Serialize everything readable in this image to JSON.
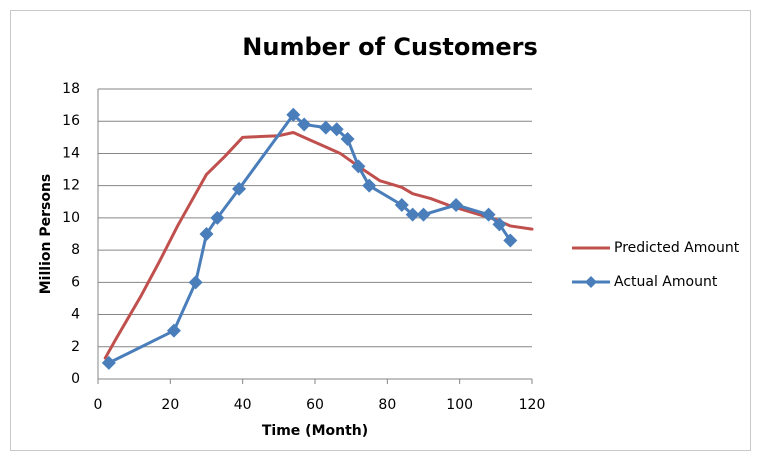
{
  "chart_data": {
    "type": "line",
    "title": "Number of Customers",
    "x_label": "Time (Month)",
    "y_label": "Million Persons",
    "xlim": [
      0,
      120
    ],
    "xticks": [
      0,
      20,
      40,
      60,
      80,
      100,
      120
    ],
    "ylim": [
      0,
      18
    ],
    "yticks": [
      0,
      2,
      4,
      6,
      8,
      10,
      12,
      14,
      16,
      18
    ],
    "grid": true,
    "legend": "right",
    "series": [
      {
        "name": "Predicted Amount",
        "color": "#c0504d",
        "marker": "none",
        "x": [
          2,
          5,
          12,
          17,
          22,
          30,
          35,
          40,
          45,
          50,
          54,
          58,
          63,
          67,
          72,
          78,
          84,
          87,
          92,
          98,
          104,
          110,
          114,
          120
        ],
        "values": [
          1.3,
          2.5,
          5.2,
          7.3,
          9.5,
          12.7,
          13.8,
          15.0,
          15.05,
          15.1,
          15.3,
          14.9,
          14.4,
          14.0,
          13.2,
          12.3,
          11.9,
          11.5,
          11.2,
          10.7,
          10.3,
          9.9,
          9.5,
          9.3
        ]
      },
      {
        "name": "Actual Amount",
        "color": "#4a7ebb",
        "marker": "diamond",
        "x": [
          3,
          21,
          27,
          30,
          33,
          39,
          54,
          57,
          63,
          66,
          69,
          72,
          75,
          84,
          87,
          90,
          99,
          108,
          111,
          114
        ],
        "values": [
          1.0,
          3.0,
          6.0,
          9.0,
          10.0,
          11.8,
          16.4,
          15.8,
          15.6,
          15.5,
          14.9,
          13.2,
          12.0,
          10.8,
          10.2,
          10.2,
          10.8,
          10.2,
          9.6,
          8.6
        ]
      }
    ]
  }
}
